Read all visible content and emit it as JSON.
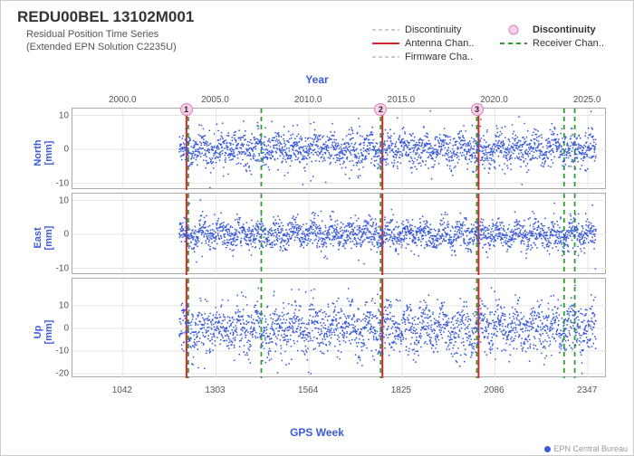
{
  "title": "REDU00BEL 13102M001",
  "subtitle_line1": "Residual Position Time Series",
  "subtitle_line2": "(Extended EPN Solution C2235U)",
  "top_axis_label": "Year",
  "bottom_axis_label": "GPS Week",
  "credit": "EPN Central Bureau",
  "legend": [
    {
      "kind": "line",
      "color": "#bbb",
      "dash": "4,3",
      "label": "Discontinuity"
    },
    {
      "kind": "line",
      "color": "#d62728",
      "dash": "",
      "label": "Antenna Chan.."
    },
    {
      "kind": "line",
      "color": "#bbb",
      "dash": "4,3",
      "label": "Firmware Cha.."
    },
    {
      "kind": "dot",
      "color": "#f8d0e8",
      "label": "Discontinuity"
    },
    {
      "kind": "line",
      "color": "#2ca02c",
      "dash": "5,4",
      "label": "Receiver Chan.."
    }
  ],
  "x_domain_week": [
    900,
    2400
  ],
  "top_ticks_year": [
    2000.0,
    2005.0,
    2010.0,
    2015.0,
    2020.0,
    2025.0
  ],
  "top_ticks_week": [
    1043,
    1303,
    1564,
    1825,
    2086,
    2347
  ],
  "bottom_ticks": [
    1042,
    1303,
    1564,
    1825,
    2086,
    2347
  ],
  "grid_weeks": [
    1042,
    1303,
    1564,
    1825,
    2086,
    2347
  ],
  "panels": [
    {
      "name": "North",
      "unit": "[mm]",
      "ylim": [
        -12,
        12
      ],
      "yticks": [
        -10,
        0,
        10
      ],
      "noise_amp": 2.5
    },
    {
      "name": "East",
      "unit": "[mm]",
      "ylim": [
        -12,
        12
      ],
      "yticks": [
        -10,
        0,
        10
      ],
      "noise_amp": 2.2
    },
    {
      "name": "Up",
      "unit": "[mm]",
      "ylim": [
        -22,
        22
      ],
      "yticks": [
        -20,
        -10,
        0,
        10
      ],
      "noise_amp": 5.5
    }
  ],
  "data_week_range": [
    1200,
    2370
  ],
  "colors": {
    "point": "#3b5bdb",
    "axis_label": "#3b5bdb",
    "antenna": "#d62728",
    "receiver": "#2ca02c",
    "grid": "#e5e5e5",
    "border": "#aaa"
  },
  "antenna_lines_week": [
    1220,
    1770,
    2040
  ],
  "receiver_lines_week": [
    1225,
    1430,
    1765,
    2035,
    2280,
    2310
  ],
  "disc_markers": [
    {
      "week": 1222,
      "label": "1"
    },
    {
      "week": 1768,
      "label": "2"
    },
    {
      "week": 2038,
      "label": "3"
    }
  ],
  "chart_type": "scatter-timeseries-3panel",
  "point_radius": 0.9,
  "n_points_per_panel": 2200
}
